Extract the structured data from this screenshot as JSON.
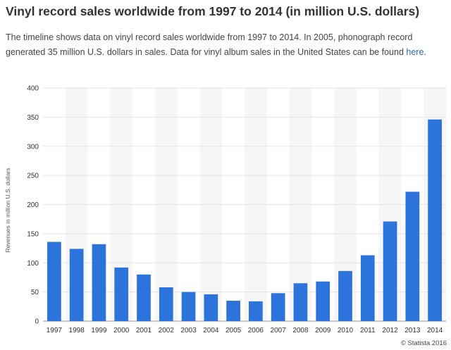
{
  "header": {
    "title": "Vinyl record sales worldwide from 1997 to 2014 (in million U.S. dollars)",
    "description": "The timeline shows data on vinyl record sales worldwide from 1997 to 2014. In 2005, phonograph record generated 35 million U.S. dollars in sales. Data for vinyl album sales in the United States can be found ",
    "link_label": "here",
    "description_end": "."
  },
  "footer": {
    "copyright": "© Statista 2016"
  },
  "colors": {
    "bar": "#2c73dc",
    "band": "#f6f6f6",
    "grid": "#e4e4e4",
    "link": "#2a6ab8"
  },
  "chart_data": {
    "type": "bar",
    "categories": [
      "1997",
      "1998",
      "1999",
      "2000",
      "2001",
      "2002",
      "2003",
      "2004",
      "2005",
      "2006",
      "2007",
      "2008",
      "2009",
      "2010",
      "2011",
      "2012",
      "2013",
      "2014"
    ],
    "values": [
      136,
      124,
      132,
      92,
      80,
      58,
      50,
      46,
      35,
      34,
      48,
      65,
      68,
      86,
      113,
      171,
      222,
      346
    ],
    "title": "",
    "xlabel": "",
    "ylabel": "Revenues in million U.S. dollars",
    "ylim": [
      0,
      400
    ],
    "yticks": [
      0,
      50,
      100,
      150,
      200,
      250,
      300,
      350,
      400
    ],
    "grid": true,
    "legend": "none"
  }
}
